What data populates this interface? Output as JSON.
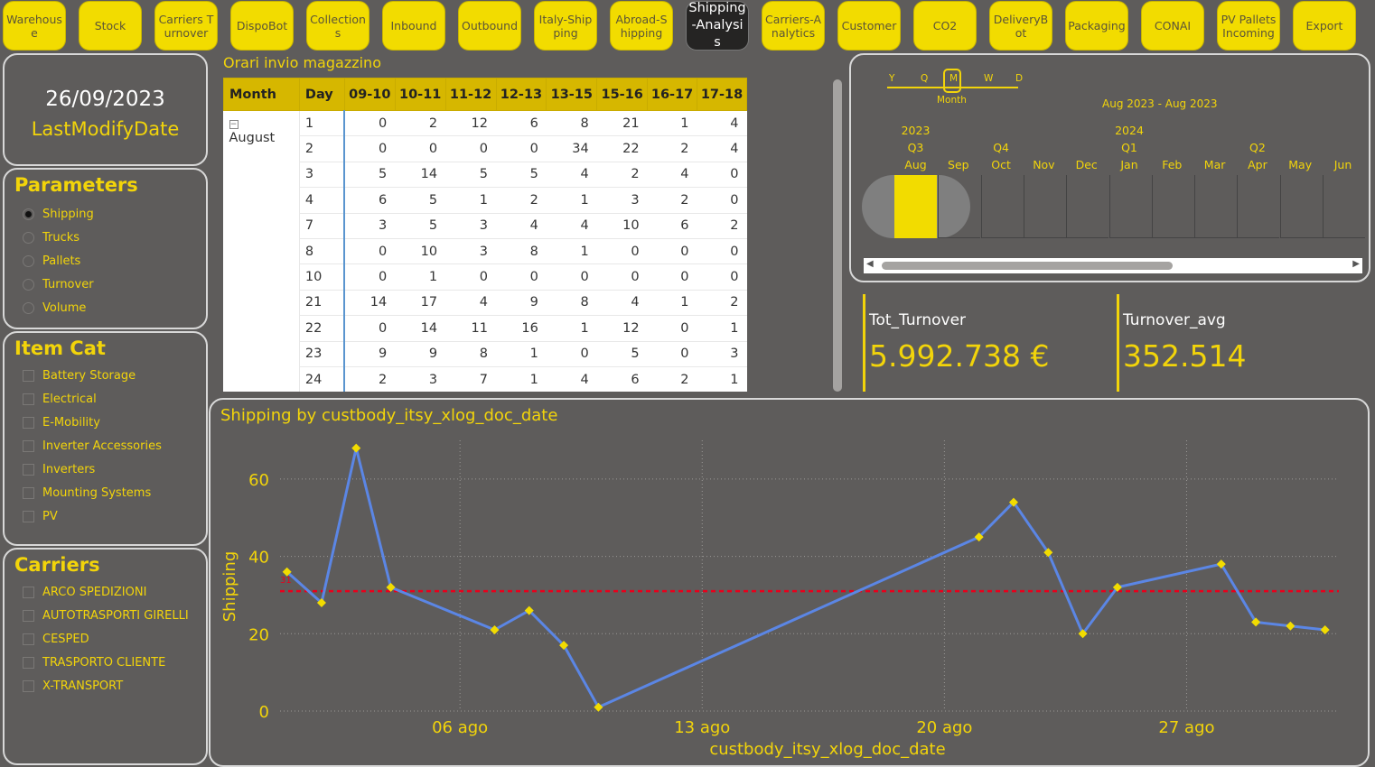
{
  "nav": [
    {
      "label": "Warehouse",
      "active": false
    },
    {
      "label": "Stock",
      "active": false
    },
    {
      "label": "Carriers Turnover",
      "active": false
    },
    {
      "label": "DispoBot",
      "active": false
    },
    {
      "label": "Collections",
      "active": false
    },
    {
      "label": "Inbound",
      "active": false
    },
    {
      "label": "Outbound",
      "active": false
    },
    {
      "label": "Italy-Shipping",
      "active": false
    },
    {
      "label": "Abroad-Shipping",
      "active": false
    },
    {
      "label": "Shipping-Analysis",
      "active": true
    },
    {
      "label": "Carriers-Analytics",
      "active": false
    },
    {
      "label": "Customer",
      "active": false
    },
    {
      "label": "CO2",
      "active": false
    },
    {
      "label": "DeliveryBot",
      "active": false
    },
    {
      "label": "Packaging",
      "active": false
    },
    {
      "label": "CONAI",
      "active": false
    },
    {
      "label": "PV Pallets Incoming",
      "active": false
    },
    {
      "label": "Export",
      "active": false
    }
  ],
  "last_modify": {
    "date": "26/09/2023",
    "label": "LastModifyDate"
  },
  "parameters": {
    "title": "Parameters",
    "items": [
      "Shipping",
      "Trucks",
      "Pallets",
      "Turnover",
      "Volume"
    ],
    "selected": "Shipping"
  },
  "item_cat": {
    "title": "Item Cat",
    "items": [
      "Battery Storage",
      "Electrical",
      "E-Mobility",
      "Inverter Accessories",
      "Inverters",
      "Mounting Systems",
      "PV"
    ]
  },
  "carriers": {
    "title": "Carriers",
    "items": [
      "ARCO SPEDIZIONI",
      "AUTOTRASPORTI GIRELLI",
      "CESPED",
      "TRASPORTO CLIENTE",
      "X-TRANSPORT"
    ]
  },
  "table": {
    "title": "Orari invio magazzino",
    "headers": [
      "Month",
      "Day",
      "09-10",
      "10-11",
      "11-12",
      "12-13",
      "13-15",
      "15-16",
      "16-17",
      "17-18"
    ],
    "month": "August",
    "expand_symbol": "−",
    "rows": [
      {
        "day": "1",
        "values": [
          "0",
          "2",
          "12",
          "6",
          "8",
          "21",
          "1",
          "4"
        ]
      },
      {
        "day": "2",
        "values": [
          "0",
          "0",
          "0",
          "0",
          "34",
          "22",
          "2",
          "4"
        ]
      },
      {
        "day": "3",
        "values": [
          "5",
          "14",
          "5",
          "5",
          "4",
          "2",
          "4",
          "0"
        ]
      },
      {
        "day": "4",
        "values": [
          "6",
          "5",
          "1",
          "2",
          "1",
          "3",
          "2",
          "0"
        ]
      },
      {
        "day": "7",
        "values": [
          "3",
          "5",
          "3",
          "4",
          "4",
          "10",
          "6",
          "2"
        ]
      },
      {
        "day": "8",
        "values": [
          "0",
          "10",
          "3",
          "8",
          "1",
          "0",
          "0",
          "0"
        ]
      },
      {
        "day": "10",
        "values": [
          "0",
          "1",
          "0",
          "0",
          "0",
          "0",
          "0",
          "0"
        ]
      },
      {
        "day": "21",
        "values": [
          "14",
          "17",
          "4",
          "9",
          "8",
          "4",
          "1",
          "2"
        ]
      },
      {
        "day": "22",
        "values": [
          "0",
          "14",
          "11",
          "16",
          "1",
          "12",
          "0",
          "1"
        ]
      },
      {
        "day": "23",
        "values": [
          "9",
          "9",
          "8",
          "1",
          "0",
          "5",
          "0",
          "3"
        ]
      },
      {
        "day": "24",
        "values": [
          "2",
          "3",
          "7",
          "1",
          "4",
          "6",
          "2",
          "1"
        ]
      }
    ]
  },
  "timeline": {
    "levels": [
      "Y",
      "Q",
      "M",
      "W",
      "D"
    ],
    "level_selected": "M",
    "level_selected_label": "Month",
    "range": "Aug 2023 - Aug 2023",
    "years": [
      {
        "label": "2023",
        "col": 1
      },
      {
        "label": "2024",
        "col": 6
      }
    ],
    "quarters": [
      {
        "label": "Q3",
        "col": 1
      },
      {
        "label": "Q4",
        "col": 3
      },
      {
        "label": "Q1",
        "col": 6
      },
      {
        "label": "Q2",
        "col": 9
      }
    ],
    "months": [
      "Aug",
      "Sep",
      "Oct",
      "Nov",
      "Dec",
      "Jan",
      "Feb",
      "Mar",
      "Apr",
      "May",
      "Jun"
    ],
    "selected_month": "Aug",
    "scroll_left": "◀",
    "scroll_right": "▶"
  },
  "kpis": [
    {
      "label": "Tot_Turnover",
      "value": "5.992.738 €"
    },
    {
      "label": "Turnover_avg",
      "value": "352.514"
    }
  ],
  "colors": {
    "accent": "#f2dc00",
    "line": "#5b86e5",
    "avg": "#e8001c",
    "bg": "#5e5c5b"
  },
  "chart_data": {
    "type": "line",
    "title": "Shipping by custbody_itsy_xlog_doc_date",
    "xlabel": "custbody_itsy_xlog_doc_date",
    "ylabel": "Shipping",
    "x_tick_labels": [
      "06 ago",
      "13 ago",
      "20 ago",
      "27 ago"
    ],
    "x_tick_days": [
      6,
      13,
      20,
      27
    ],
    "y_ticks": [
      0,
      20,
      40,
      60
    ],
    "ylim": [
      0,
      70
    ],
    "xlim_days": [
      0.8,
      31.4
    ],
    "average_line": {
      "value": 31,
      "label": "31"
    },
    "grid": true,
    "series": [
      {
        "days": [
          1,
          2,
          3,
          4,
          7,
          8,
          9,
          10,
          21,
          22,
          23,
          24,
          25,
          28,
          29,
          30,
          31
        ],
        "values": [
          36,
          28,
          68,
          32,
          21,
          26,
          17,
          1,
          45,
          54,
          41,
          20,
          32,
          38,
          23,
          22,
          21
        ]
      }
    ]
  }
}
